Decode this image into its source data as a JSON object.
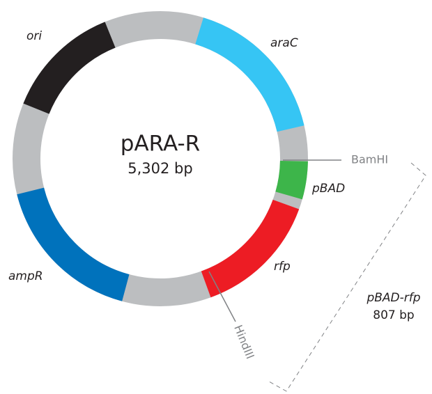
{
  "plasmid": {
    "name": "pARA-R",
    "size": "5,302 bp"
  },
  "features": [
    {
      "label": "ori"
    },
    {
      "label": "araC"
    },
    {
      "label": "pBAD"
    },
    {
      "label": "rfp"
    },
    {
      "label": "ampR"
    }
  ],
  "sites": [
    {
      "label": "BamHI"
    },
    {
      "label": "HindIII"
    }
  ],
  "insert": {
    "label": "pBAD-rfp",
    "size": "807 bp"
  }
}
